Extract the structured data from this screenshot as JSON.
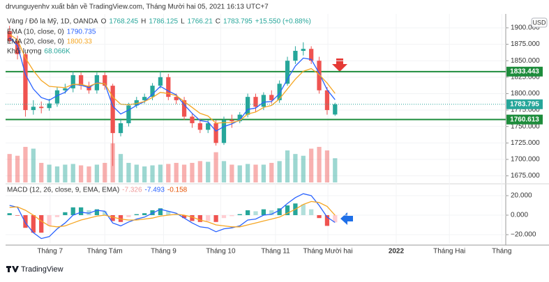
{
  "header": "drvunguyenhv xuất bản về TradingView.com, Tháng Mười hai 05, 2021 16:13 UTC+7",
  "footer": "TradingView",
  "chart_data": {
    "type": "candlestick",
    "symbol": "Vàng / Đô la Mỹ, 1D, OANDA",
    "currency": "USD",
    "ohlc_labels": [
      "O",
      "H",
      "L",
      "C"
    ],
    "change": "+15.550 (+0.88%)",
    "xlim": [
      -0.5,
      62.5
    ],
    "xticks": [
      {
        "value": 5.1,
        "label": "Tháng 7"
      },
      {
        "value": 12.0,
        "label": "Tháng Tám"
      },
      {
        "value": 19.4,
        "label": "Tháng 9"
      },
      {
        "value": 26.6,
        "label": "Tháng 10"
      },
      {
        "value": 33.5,
        "label": "Tháng 11"
      },
      {
        "value": 40.1,
        "label": "Tháng Mười hai"
      },
      {
        "value": 48.7,
        "label": "2022"
      },
      {
        "value": 55.4,
        "label": "Tháng Hai"
      },
      {
        "value": 62.0,
        "label": "Tháng"
      }
    ],
    "ylim": [
      1665,
      1919
    ],
    "yticks": [
      {
        "value": 1675,
        "label": "1675.000"
      },
      {
        "value": 1700,
        "label": "1700.000"
      },
      {
        "value": 1725,
        "label": "1725.000"
      },
      {
        "value": 1750,
        "label": "1750.000"
      },
      {
        "value": 1775,
        "label": "1775.000"
      },
      {
        "value": 1800,
        "label": "1800.000"
      },
      {
        "value": 1825,
        "label": "1825.000"
      },
      {
        "value": 1850,
        "label": "1850.000"
      },
      {
        "value": 1875,
        "label": "1875.000"
      },
      {
        "value": 1900,
        "label": "1900.000"
      }
    ],
    "grid": true,
    "up_color": "#26a69a",
    "down_color": "#ef5350",
    "open": [
      1895,
      1880,
      1860,
      1775,
      1780,
      1778,
      1785,
      1805,
      1808,
      1828,
      1812,
      1805,
      1828,
      1812,
      1740,
      1755,
      1782,
      1790,
      1795,
      1812,
      1825,
      1795,
      1790,
      1765,
      1755,
      1745,
      1755,
      1725,
      1760,
      1758,
      1768,
      1795,
      1780,
      1798,
      1790,
      1815,
      1850,
      1865,
      1868,
      1850,
      1805,
      1768.245
    ],
    "high": [
      1903,
      1888,
      1862,
      1790,
      1788,
      1792,
      1810,
      1815,
      1834,
      1832,
      1818,
      1832,
      1832,
      1815,
      1762,
      1786,
      1795,
      1800,
      1816,
      1834,
      1830,
      1800,
      1795,
      1770,
      1762,
      1760,
      1760,
      1765,
      1768,
      1772,
      1800,
      1800,
      1802,
      1805,
      1820,
      1856,
      1872,
      1878,
      1872,
      1856,
      1810,
      1786.125
    ],
    "low": [
      1876,
      1852,
      1765,
      1768,
      1770,
      1774,
      1780,
      1800,
      1802,
      1806,
      1800,
      1800,
      1806,
      1690,
      1735,
      1750,
      1778,
      1785,
      1790,
      1808,
      1790,
      1784,
      1760,
      1748,
      1740,
      1740,
      1721,
      1722,
      1748,
      1755,
      1764,
      1772,
      1775,
      1785,
      1786,
      1812,
      1845,
      1858,
      1845,
      1800,
      1768,
      1766.21
    ],
    "close": [
      1880,
      1860,
      1775,
      1780,
      1778,
      1785,
      1805,
      1808,
      1828,
      1812,
      1805,
      1828,
      1812,
      1740,
      1755,
      1782,
      1790,
      1795,
      1812,
      1825,
      1795,
      1790,
      1765,
      1755,
      1745,
      1755,
      1725,
      1760,
      1758,
      1768,
      1795,
      1780,
      1798,
      1790,
      1815,
      1850,
      1865,
      1868,
      1850,
      1805,
      1775,
      1783.795
    ],
    "lines": [
      {
        "name": "EMA (10, close, 0)",
        "color": "#2962ff",
        "values": [
          1885,
          1873,
          1829,
          1807,
          1794,
          1790,
          1797,
          1802,
          1814,
          1813,
          1809,
          1817,
          1815,
          1781,
          1769,
          1775,
          1782,
          1788,
          1799,
          1811,
          1804,
          1798,
          1783,
          1770,
          1759,
          1757,
          1743,
          1750,
          1754,
          1760,
          1776,
          1778,
          1787,
          1788,
          1800,
          1822,
          1842,
          1854,
          1852,
          1831,
          1806,
          1790.735
        ]
      },
      {
        "name": "EMA (20, close, 0)",
        "color": "#f5a623",
        "values": [
          1890,
          1882,
          1854,
          1835,
          1820,
          1811,
          1810,
          1809,
          1814,
          1814,
          1811,
          1816,
          1815,
          1795,
          1784,
          1783,
          1785,
          1788,
          1794,
          1802,
          1800,
          1797,
          1788,
          1779,
          1770,
          1766,
          1755,
          1756,
          1756,
          1759,
          1769,
          1772,
          1779,
          1782,
          1792,
          1807,
          1822,
          1834,
          1838,
          1829,
          1816,
          1800.33
        ]
      }
    ],
    "levels": [
      {
        "value": 1833.443,
        "color": "#1e8c3c"
      },
      {
        "value": 1760.613,
        "color": "#1e8c3c"
      }
    ],
    "volume": {
      "name": "Khối lượng",
      "last_label": "68.066K",
      "vlim": [
        0,
        470
      ],
      "values": [
        80,
        75,
        100,
        95,
        55,
        50,
        45,
        50,
        52,
        48,
        45,
        50,
        55,
        110,
        80,
        55,
        50,
        45,
        48,
        50,
        52,
        55,
        50,
        55,
        60,
        58,
        85,
        60,
        50,
        48,
        52,
        50,
        50,
        55,
        60,
        90,
        80,
        75,
        95,
        100,
        90,
        68.066
      ]
    },
    "macd": {
      "name": "MACD (12, 26, close, 9, EMA, EMA)",
      "ylim": [
        -29.3,
        29.3
      ],
      "yticks": [
        {
          "value": -20,
          "label": "−20.000"
        },
        {
          "value": 0,
          "label": "0.000"
        },
        {
          "value": 20,
          "label": "20.000"
        }
      ],
      "histogram": [
        2,
        -0.5,
        -13,
        -18,
        -18,
        -11,
        -2,
        3,
        8,
        8,
        5,
        6,
        4,
        -6,
        -7,
        -2,
        1,
        2,
        5,
        7,
        4,
        1,
        -3,
        -6,
        -7,
        -6,
        -7,
        -3,
        -1,
        1,
        5,
        4,
        6,
        5,
        7,
        10,
        12,
        11,
        6,
        -3,
        -11,
        -7.326
      ],
      "macd_line": {
        "color": "#2962ff",
        "values": [
          10,
          8,
          -8,
          -18,
          -24,
          -22,
          -14,
          -8,
          0,
          3,
          2,
          5,
          4,
          -8,
          -11,
          -7,
          -4,
          -2,
          2,
          6,
          4,
          2,
          -3,
          -8,
          -12,
          -13,
          -17,
          -14,
          -13,
          -11,
          -5,
          -4,
          0,
          1,
          5,
          12,
          18,
          22,
          20,
          10,
          -2,
          -7.493
        ]
      },
      "signal_line": {
        "color": "#f5a623",
        "values": [
          8,
          8.5,
          5,
          0,
          -6,
          -11,
          -12,
          -11,
          -8,
          -5,
          -3,
          -1,
          0,
          -2,
          -4,
          -5,
          -5,
          -4,
          -3,
          -1,
          0,
          1,
          0,
          -2,
          -5,
          -7,
          -10,
          -11,
          -12,
          -12,
          -10,
          -8,
          -6,
          -4,
          -2,
          2,
          6,
          11,
          14,
          13,
          9,
          -0.158
        ]
      }
    }
  }
}
